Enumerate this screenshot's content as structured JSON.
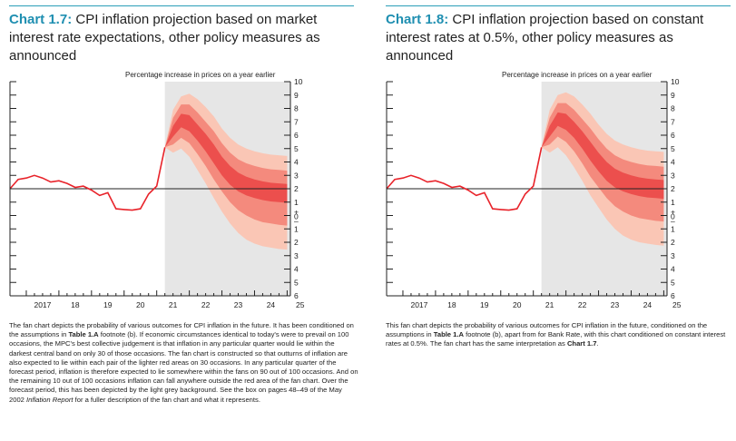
{
  "charts": [
    {
      "id": "left",
      "title_num": "Chart 1.7:",
      "title_text": "CPI inflation projection based on market interest rate expectations, other policy measures as announced",
      "unit_label": "Percentage increase in prices on a year earlier",
      "note_parts": [
        {
          "t": "The fan chart depicts the probability of various outcomes for CPI inflation in the future. It has been conditioned on the assumptions in "
        },
        {
          "t": "Table 1.A",
          "b": true
        },
        {
          "t": " footnote (b). If economic circumstances identical to today's were to prevail on 100 occasions, the MPC's best collective judgement is that inflation in any particular quarter would lie within the darkest central band on only 30 of those occasions. The fan chart is constructed so that outturns of inflation are also expected to lie within each pair of the lighter red areas on 30 occasions. In any particular quarter of the forecast period, inflation is therefore expected to lie somewhere within the fans on 90 out of 100 occasions. And on the remaining 10 out of 100 occasions inflation can fall anywhere outside the red area of the fan chart. Over the forecast period, this has been depicted by the light grey background. See the box on pages 48–49 of the May 2002 "
        },
        {
          "t": "Inflation Report",
          "i": true
        },
        {
          "t": " for a fuller description of the fan chart and what it represents."
        }
      ]
    },
    {
      "id": "right",
      "title_num": "Chart 1.8:",
      "title_text": "CPI inflation projection based on constant interest rates at 0.5%, other policy measures as announced",
      "unit_label": "Percentage increase in prices on a year earlier",
      "note_parts": [
        {
          "t": "This fan chart depicts the probability of various outcomes for CPI inflation in the future, conditioned on the assumptions in "
        },
        {
          "t": "Table 1.A",
          "b": true
        },
        {
          "t": " footnote (b), apart from for Bank Rate, with this chart conditioned on constant interest rates at 0.5%. The fan chart has the same interpretation as "
        },
        {
          "t": "Chart 1.7",
          "b": true
        },
        {
          "t": "."
        }
      ]
    }
  ],
  "chart_data": [
    {
      "type": "area",
      "title": "CPI inflation projection based on market interest rate expectations, other policy measures as announced",
      "ylabel": "Percentage increase in prices on a year earlier",
      "x_tick_labels": [
        "2017",
        "18",
        "19",
        "20",
        "21",
        "22",
        "23",
        "24",
        "25"
      ],
      "y_tick_labels": [
        "10",
        "9",
        "8",
        "7",
        "6",
        "5",
        "4",
        "3",
        "2",
        "1",
        "+",
        "0",
        "–",
        "1",
        "2",
        "3",
        "4",
        "5",
        "6"
      ],
      "ylim": [
        -6,
        10
      ],
      "xlim": [
        2016.5,
        2025.1
      ],
      "target": 2,
      "forecast_start": 2021.25,
      "history": {
        "x": [
          2016.5,
          2016.75,
          2017.0,
          2017.25,
          2017.5,
          2017.75,
          2018.0,
          2018.25,
          2018.5,
          2018.75,
          2019.0,
          2019.25,
          2019.5,
          2019.75,
          2020.0,
          2020.25,
          2020.5,
          2020.75,
          2021.0,
          2021.25
        ],
        "y": [
          2.0,
          2.7,
          2.8,
          3.0,
          2.8,
          2.5,
          2.6,
          2.4,
          2.1,
          2.2,
          1.9,
          1.5,
          1.7,
          0.5,
          0.45,
          0.4,
          0.5,
          1.6,
          2.2,
          5.1
        ]
      },
      "fan": {
        "x": [
          2021.25,
          2021.5,
          2021.75,
          2022.0,
          2022.25,
          2022.5,
          2022.75,
          2023.0,
          2023.25,
          2023.5,
          2023.75,
          2024.0,
          2024.25,
          2024.5,
          2024.75,
          2025.0
        ],
        "median": [
          5.1,
          6.3,
          7.1,
          6.9,
          6.2,
          5.5,
          4.7,
          3.8,
          3.1,
          2.6,
          2.3,
          2.1,
          1.95,
          1.85,
          1.8,
          1.75
        ],
        "bands": [
          {
            "lower": [
              5.1,
              5.9,
              6.6,
              6.3,
              5.6,
              4.8,
              3.9,
              3.0,
              2.3,
              1.8,
              1.5,
              1.3,
              1.15,
              1.05,
              1.0,
              0.95
            ],
            "upper": [
              5.1,
              6.7,
              7.6,
              7.5,
              6.8,
              6.1,
              5.3,
              4.4,
              3.7,
              3.2,
              2.9,
              2.7,
              2.55,
              2.45,
              2.4,
              2.35
            ],
            "color": "#ec4f4d"
          },
          {
            "lower": [
              5.1,
              5.3,
              5.8,
              5.4,
              4.6,
              3.7,
              2.7,
              1.8,
              1.0,
              0.4,
              0.0,
              -0.3,
              -0.5,
              -0.6,
              -0.7,
              -0.75
            ],
            "upper": [
              5.1,
              7.3,
              8.3,
              8.3,
              7.7,
              7.0,
              6.3,
              5.4,
              4.7,
              4.2,
              3.9,
              3.7,
              3.55,
              3.45,
              3.4,
              3.35
            ],
            "color": "#f48a7d"
          },
          {
            "lower": [
              5.1,
              4.7,
              5.0,
              4.4,
              3.4,
              2.4,
              1.3,
              0.3,
              -0.6,
              -1.3,
              -1.8,
              -2.1,
              -2.3,
              -2.4,
              -2.5,
              -2.55
            ],
            "upper": [
              5.1,
              7.9,
              8.9,
              9.1,
              8.7,
              8.1,
              7.4,
              6.5,
              5.8,
              5.3,
              5.0,
              4.8,
              4.65,
              4.55,
              4.5,
              4.45
            ],
            "color": "#fac6b5"
          }
        ]
      }
    },
    {
      "type": "area",
      "title": "CPI inflation projection based on constant interest rates at 0.5%, other policy measures as announced",
      "ylabel": "Percentage increase in prices on a year earlier",
      "x_tick_labels": [
        "2017",
        "18",
        "19",
        "20",
        "21",
        "22",
        "23",
        "24",
        "25"
      ],
      "y_tick_labels": [
        "10",
        "9",
        "8",
        "7",
        "6",
        "5",
        "4",
        "3",
        "2",
        "1",
        "+",
        "0",
        "–",
        "1",
        "2",
        "3",
        "4",
        "5",
        "6"
      ],
      "ylim": [
        -6,
        10
      ],
      "xlim": [
        2016.5,
        2025.1
      ],
      "target": 2,
      "forecast_start": 2021.25,
      "history": {
        "x": [
          2016.5,
          2016.75,
          2017.0,
          2017.25,
          2017.5,
          2017.75,
          2018.0,
          2018.25,
          2018.5,
          2018.75,
          2019.0,
          2019.25,
          2019.5,
          2019.75,
          2020.0,
          2020.25,
          2020.5,
          2020.75,
          2021.0,
          2021.25
        ],
        "y": [
          2.0,
          2.7,
          2.8,
          3.0,
          2.8,
          2.5,
          2.6,
          2.4,
          2.1,
          2.2,
          1.9,
          1.5,
          1.7,
          0.5,
          0.45,
          0.4,
          0.5,
          1.6,
          2.2,
          5.1
        ]
      },
      "fan": {
        "x": [
          2021.25,
          2021.5,
          2021.75,
          2022.0,
          2022.25,
          2022.5,
          2022.75,
          2023.0,
          2023.25,
          2023.5,
          2023.75,
          2024.0,
          2024.25,
          2024.5,
          2024.75,
          2025.0
        ],
        "median": [
          5.1,
          6.3,
          7.2,
          7.0,
          6.4,
          5.7,
          4.9,
          4.1,
          3.4,
          2.9,
          2.6,
          2.4,
          2.25,
          2.15,
          2.1,
          2.05
        ],
        "bands": [
          {
            "lower": [
              5.1,
              5.9,
              6.7,
              6.4,
              5.8,
              5.0,
              4.1,
              3.3,
              2.6,
              2.1,
              1.8,
              1.6,
              1.45,
              1.35,
              1.3,
              1.25
            ],
            "upper": [
              5.1,
              6.7,
              7.7,
              7.6,
              7.0,
              6.3,
              5.5,
              4.7,
              4.0,
              3.5,
              3.2,
              3.0,
              2.85,
              2.75,
              2.7,
              2.65
            ],
            "color": "#ec4f4d"
          },
          {
            "lower": [
              5.1,
              5.3,
              5.9,
              5.5,
              4.8,
              3.9,
              2.9,
              2.1,
              1.3,
              0.7,
              0.3,
              0.0,
              -0.2,
              -0.3,
              -0.4,
              -0.45
            ],
            "upper": [
              5.1,
              7.3,
              8.4,
              8.4,
              7.9,
              7.2,
              6.5,
              5.7,
              5.0,
              4.5,
              4.2,
              4.0,
              3.85,
              3.75,
              3.7,
              3.65
            ],
            "color": "#f48a7d"
          },
          {
            "lower": [
              5.1,
              4.7,
              5.1,
              4.5,
              3.6,
              2.6,
              1.5,
              0.6,
              -0.3,
              -1.0,
              -1.5,
              -1.8,
              -2.0,
              -2.1,
              -2.2,
              -2.25
            ],
            "upper": [
              5.1,
              7.9,
              9.0,
              9.2,
              8.9,
              8.3,
              7.6,
              6.8,
              6.1,
              5.6,
              5.3,
              5.1,
              4.95,
              4.85,
              4.8,
              4.75
            ],
            "color": "#fac6b5"
          }
        ]
      }
    }
  ],
  "colors": {
    "accent": "#1f8fb1",
    "history_line": "#e8232a",
    "forecast_background": "#e6e6e6"
  }
}
